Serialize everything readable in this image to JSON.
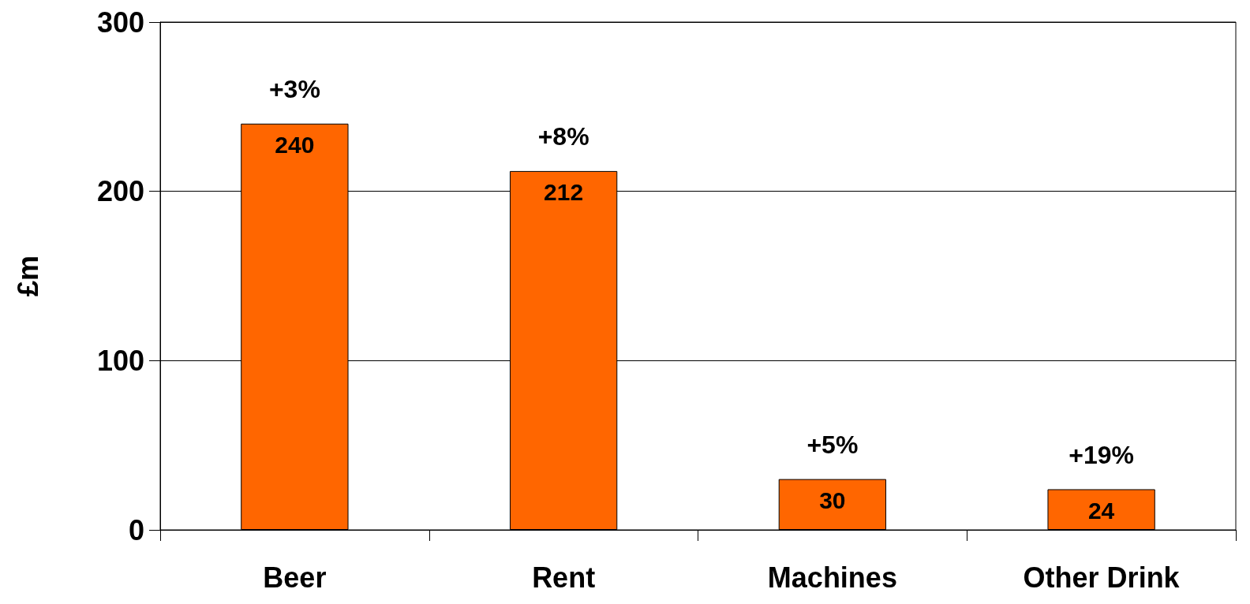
{
  "chart_data": {
    "type": "bar",
    "ylabel": "£m",
    "categories": [
      "Beer",
      "Rent",
      "Machines",
      "Other Drink"
    ],
    "values": [
      240,
      212,
      30,
      24
    ],
    "color": "#ff6600",
    "ylim": [
      0,
      300
    ],
    "yticks": [
      0,
      100,
      200,
      300
    ],
    "grid": "y",
    "data_labels": true,
    "annotations": [
      {
        "text": "+3%",
        "x": "Beer",
        "y": 240
      },
      {
        "text": "+8%",
        "x": "Rent",
        "y": 212
      },
      {
        "text": "+5%",
        "x": "Machines",
        "y": 30
      },
      {
        "text": "+19%",
        "x": "Other Drink",
        "y": 24
      }
    ]
  }
}
